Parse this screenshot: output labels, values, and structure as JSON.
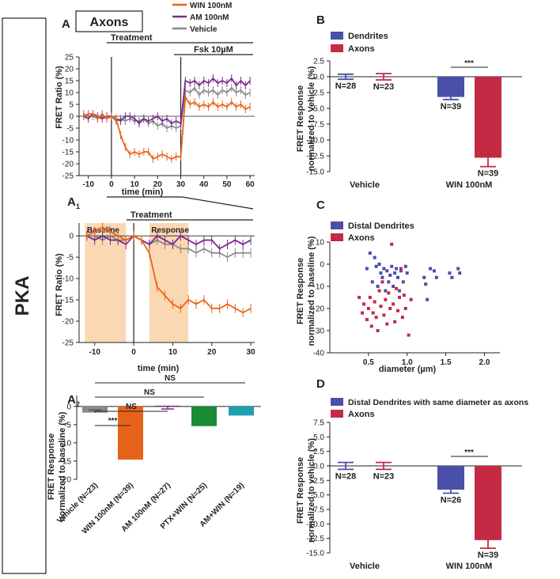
{
  "side_label": "PKA",
  "colors": {
    "win": "#e8631a",
    "am": "#7b2b8e",
    "veh": "#8a8a8a",
    "dend": "#4a4fa8",
    "axon": "#c42a44",
    "green": "#1a8a35",
    "teal": "#1fa0b0",
    "shade": "#fbd8b4"
  },
  "panelA": {
    "letter": "A",
    "title": "Axons",
    "legend": [
      "WIN 100nM",
      "AM 100nM",
      "Vehicle"
    ],
    "treatment": "Treatment",
    "fsk": "Fsk 10µM",
    "ylabel": "FRET Ratio (%)",
    "xlabel": "time (min)",
    "yticks": [
      "25",
      "20",
      "15",
      "10",
      "5",
      "0",
      "-5",
      "-10",
      "-15",
      "-20",
      "-25"
    ],
    "xticks": [
      "-10",
      "0",
      "10",
      "20",
      "30",
      "40",
      "50",
      "60"
    ]
  },
  "panelA1": {
    "letter": "A",
    "sub": "1",
    "treatment": "Treatment",
    "baseline": "Baseline",
    "response": "Response",
    "ylabel": "FRET Ratio (%)",
    "xlabel": "time (min)",
    "yticks": [
      "0",
      "-5",
      "-10",
      "-15",
      "-20",
      "-25"
    ],
    "xticks": [
      "-10",
      "0",
      "10",
      "20",
      "30"
    ]
  },
  "panelA2": {
    "letter": "A",
    "sub": "2",
    "ylabel1": "FRET Response",
    "ylabel2": "normalized to baseline (%)",
    "yticks": [
      "0",
      "-5",
      "-10",
      "-15",
      "-20"
    ],
    "stars": "***",
    "ns": "NS",
    "categories": [
      "Vehicle (N=23)",
      "WIN 100nM (N=39)",
      "AM 100nM (N=27)",
      "PTX+WIN (N=25)",
      "AM+WIN (N=19)"
    ]
  },
  "panelB": {
    "letter": "B",
    "legend": [
      "Dendrites",
      "Axons"
    ],
    "ylabel1": "FRET Response",
    "ylabel2": "normalized to Vehicle (%)",
    "yticks": [
      "2.5",
      "0.0",
      "-2.5",
      "-5.0",
      "-7.5",
      "-10.0",
      "-12.5",
      "-15.0"
    ],
    "groups": [
      "Vehicle",
      "WIN 100nM"
    ],
    "labels": [
      "N=28",
      "N=23",
      "N=39",
      "N=39"
    ],
    "stars": "***"
  },
  "panelC": {
    "letter": "C",
    "legend": [
      "Distal Dendrites",
      "Axons"
    ],
    "ylabel1": "FRET Response",
    "ylabel2": "normalized to baseline (%)",
    "yticks": [
      "10",
      "0",
      "-10",
      "-20",
      "-30",
      "-40"
    ],
    "xticks": [
      "0.5",
      "1.0",
      "1.5",
      "2.0"
    ],
    "xlabel": "diameter (µm)"
  },
  "panelD": {
    "letter": "D",
    "legend": [
      "Distal Dendrites with same diameter as axons",
      "Axons"
    ],
    "ylabel1": "FRET Response",
    "ylabel2": "normalized to vehicle (%)",
    "yticks": [
      "7.5",
      "5.0",
      "2.5",
      "0.0",
      "-2.5",
      "-5.0",
      "-7.5",
      "-10.0",
      "-12.5",
      "-15.0"
    ],
    "groups": [
      "Vehicle",
      "WIN 100nM"
    ],
    "labels": [
      "N=28",
      "N=23",
      "N=26",
      "N=39"
    ],
    "stars": "***"
  },
  "chart_data": [
    {
      "id": "A",
      "type": "line",
      "xlim": [
        -14,
        62
      ],
      "ylim": [
        -25,
        25
      ],
      "x": [
        -12,
        -10,
        -8,
        -6,
        -4,
        -2,
        0,
        2,
        4,
        6,
        8,
        10,
        12,
        14,
        16,
        18,
        20,
        22,
        24,
        26,
        28,
        30,
        32,
        34,
        36,
        38,
        40,
        42,
        44,
        46,
        48,
        50,
        52,
        54,
        56,
        58,
        60
      ],
      "series": [
        {
          "name": "WIN 100nM",
          "values": [
            0,
            1,
            1,
            -1,
            1,
            -1,
            0,
            -1,
            -8,
            -13,
            -16,
            -15,
            -16,
            -15,
            -15,
            -18,
            -17,
            -16,
            -17,
            -18,
            -17,
            -17,
            8,
            5,
            6,
            4,
            5,
            4,
            6,
            4,
            5,
            4,
            6,
            4,
            5,
            3,
            4
          ]
        },
        {
          "name": "AM 100nM",
          "values": [
            0,
            -1,
            1,
            0,
            -1,
            0,
            0,
            -1,
            -2,
            0,
            0,
            -1,
            -3,
            -1,
            -2,
            -1,
            0,
            -2,
            -1,
            -3,
            -2,
            -3,
            15,
            14,
            15,
            13,
            15,
            14,
            16,
            14,
            15,
            14,
            16,
            13,
            15,
            13,
            15
          ]
        },
        {
          "name": "Vehicle",
          "values": [
            1,
            0,
            0,
            -1,
            0,
            -1,
            0,
            -2,
            -1,
            -2,
            -1,
            -2,
            -2,
            -1,
            -3,
            -2,
            -4,
            -3,
            -5,
            -4,
            -5,
            -4,
            11,
            10,
            12,
            9,
            11,
            10,
            11,
            9,
            11,
            10,
            12,
            10,
            11,
            9,
            10
          ]
        }
      ]
    },
    {
      "id": "A1",
      "type": "line",
      "xlim": [
        -14,
        31
      ],
      "ylim": [
        -25,
        3
      ],
      "x": [
        -12,
        -10,
        -8,
        -6,
        -4,
        -2,
        0,
        2,
        4,
        6,
        8,
        10,
        12,
        14,
        16,
        18,
        20,
        22,
        24,
        26,
        28,
        30
      ],
      "series": [
        {
          "name": "WIN 100nM",
          "values": [
            0,
            1,
            2,
            1,
            0,
            -1,
            0,
            -1,
            -4,
            -12,
            -14,
            -16,
            -17,
            -15,
            -16,
            -15,
            -17,
            -17,
            -16,
            -17,
            -18,
            -17
          ]
        },
        {
          "name": "AM 100nM",
          "values": [
            0,
            -1,
            0,
            -1,
            -1,
            -2,
            0,
            -1,
            -2,
            0,
            -1,
            -2,
            0,
            -1,
            -2,
            -1,
            -1,
            -3,
            -2,
            -1,
            -2,
            -1
          ]
        },
        {
          "name": "Vehicle",
          "values": [
            0,
            0,
            -1,
            0,
            -1,
            -1,
            0,
            -1,
            -2,
            -1,
            -2,
            -2,
            -3,
            -3,
            -4,
            -3,
            -4,
            -4,
            -5,
            -4,
            -4,
            -4
          ]
        }
      ]
    },
    {
      "id": "A2",
      "type": "bar",
      "categories": [
        "Vehicle (N=23)",
        "WIN 100nM (N=39)",
        "AM 100nM (N=27)",
        "PTX+WIN (N=25)",
        "AM+WIN (N=19)"
      ],
      "values": [
        -1.7,
        -14.6,
        0.2,
        -5.4,
        -2.5
      ],
      "errors": [
        0.7,
        1.4,
        0.9,
        1.1,
        1.0
      ],
      "ylim": [
        -20,
        3
      ]
    },
    {
      "id": "B",
      "type": "bar",
      "categories": [
        "Vehicle",
        "WIN 100nM"
      ],
      "series": [
        {
          "name": "Dendrites",
          "values": [
            0.0,
            -3.2
          ],
          "errors": [
            0.4,
            0.4
          ]
        },
        {
          "name": "Axons",
          "values": [
            0.0,
            -12.8
          ],
          "errors": [
            0.5,
            1.4
          ]
        }
      ],
      "ylim": [
        -15,
        2.5
      ]
    },
    {
      "id": "C",
      "type": "scatter",
      "xlim": [
        0,
        2.2
      ],
      "ylim": [
        -40,
        10
      ],
      "series": [
        {
          "name": "Distal Dendrites",
          "points": [
            [
              0.48,
              -2
            ],
            [
              0.52,
              5
            ],
            [
              0.55,
              -8
            ],
            [
              0.58,
              3
            ],
            [
              0.6,
              -1
            ],
            [
              0.62,
              -10
            ],
            [
              0.64,
              0
            ],
            [
              0.66,
              -4
            ],
            [
              0.68,
              -6
            ],
            [
              0.7,
              -2
            ],
            [
              0.72,
              -12
            ],
            [
              0.74,
              -3
            ],
            [
              0.76,
              -8
            ],
            [
              0.78,
              -5
            ],
            [
              0.8,
              -1
            ],
            [
              0.82,
              -10
            ],
            [
              0.84,
              -4
            ],
            [
              0.86,
              -2
            ],
            [
              0.88,
              -6
            ],
            [
              0.9,
              -12
            ],
            [
              0.92,
              -3
            ],
            [
              0.95,
              -8
            ],
            [
              0.98,
              -1
            ],
            [
              1.0,
              -4
            ],
            [
              1.22,
              -6
            ],
            [
              1.24,
              -9
            ],
            [
              1.26,
              -16
            ],
            [
              1.3,
              -2
            ],
            [
              1.35,
              -3
            ],
            [
              1.38,
              -6
            ],
            [
              1.55,
              -4
            ],
            [
              1.58,
              -6
            ],
            [
              1.66,
              -2
            ],
            [
              1.68,
              -4
            ]
          ]
        },
        {
          "name": "Axons",
          "points": [
            [
              0.38,
              -15
            ],
            [
              0.42,
              -22
            ],
            [
              0.44,
              -18
            ],
            [
              0.48,
              -25
            ],
            [
              0.5,
              -20
            ],
            [
              0.52,
              -15
            ],
            [
              0.54,
              -28
            ],
            [
              0.56,
              -22
            ],
            [
              0.58,
              -17
            ],
            [
              0.6,
              -24
            ],
            [
              0.62,
              -30
            ],
            [
              0.64,
              -12
            ],
            [
              0.66,
              -19
            ],
            [
              0.68,
              -8
            ],
            [
              0.7,
              -23
            ],
            [
              0.72,
              -16
            ],
            [
              0.74,
              -27
            ],
            [
              0.76,
              -13
            ],
            [
              0.78,
              -20
            ],
            [
              0.8,
              9
            ],
            [
              0.82,
              -18
            ],
            [
              0.84,
              -26
            ],
            [
              0.86,
              -11
            ],
            [
              0.88,
              -21
            ],
            [
              0.9,
              -15
            ],
            [
              0.92,
              -2
            ],
            [
              0.94,
              -24
            ],
            [
              0.96,
              -14
            ],
            [
              0.98,
              -20
            ],
            [
              1.02,
              -32
            ],
            [
              1.05,
              -16
            ]
          ]
        }
      ]
    },
    {
      "id": "D",
      "type": "bar",
      "categories": [
        "Vehicle",
        "WIN 100nM"
      ],
      "series": [
        {
          "name": "Distal Dendrites with same diameter as axons",
          "values": [
            0.0,
            -4.1
          ],
          "errors": [
            0.6,
            0.6
          ]
        },
        {
          "name": "Axons",
          "values": [
            0.0,
            -12.8
          ],
          "errors": [
            0.6,
            1.4
          ]
        }
      ],
      "ylim": [
        -15,
        7.5
      ]
    }
  ]
}
